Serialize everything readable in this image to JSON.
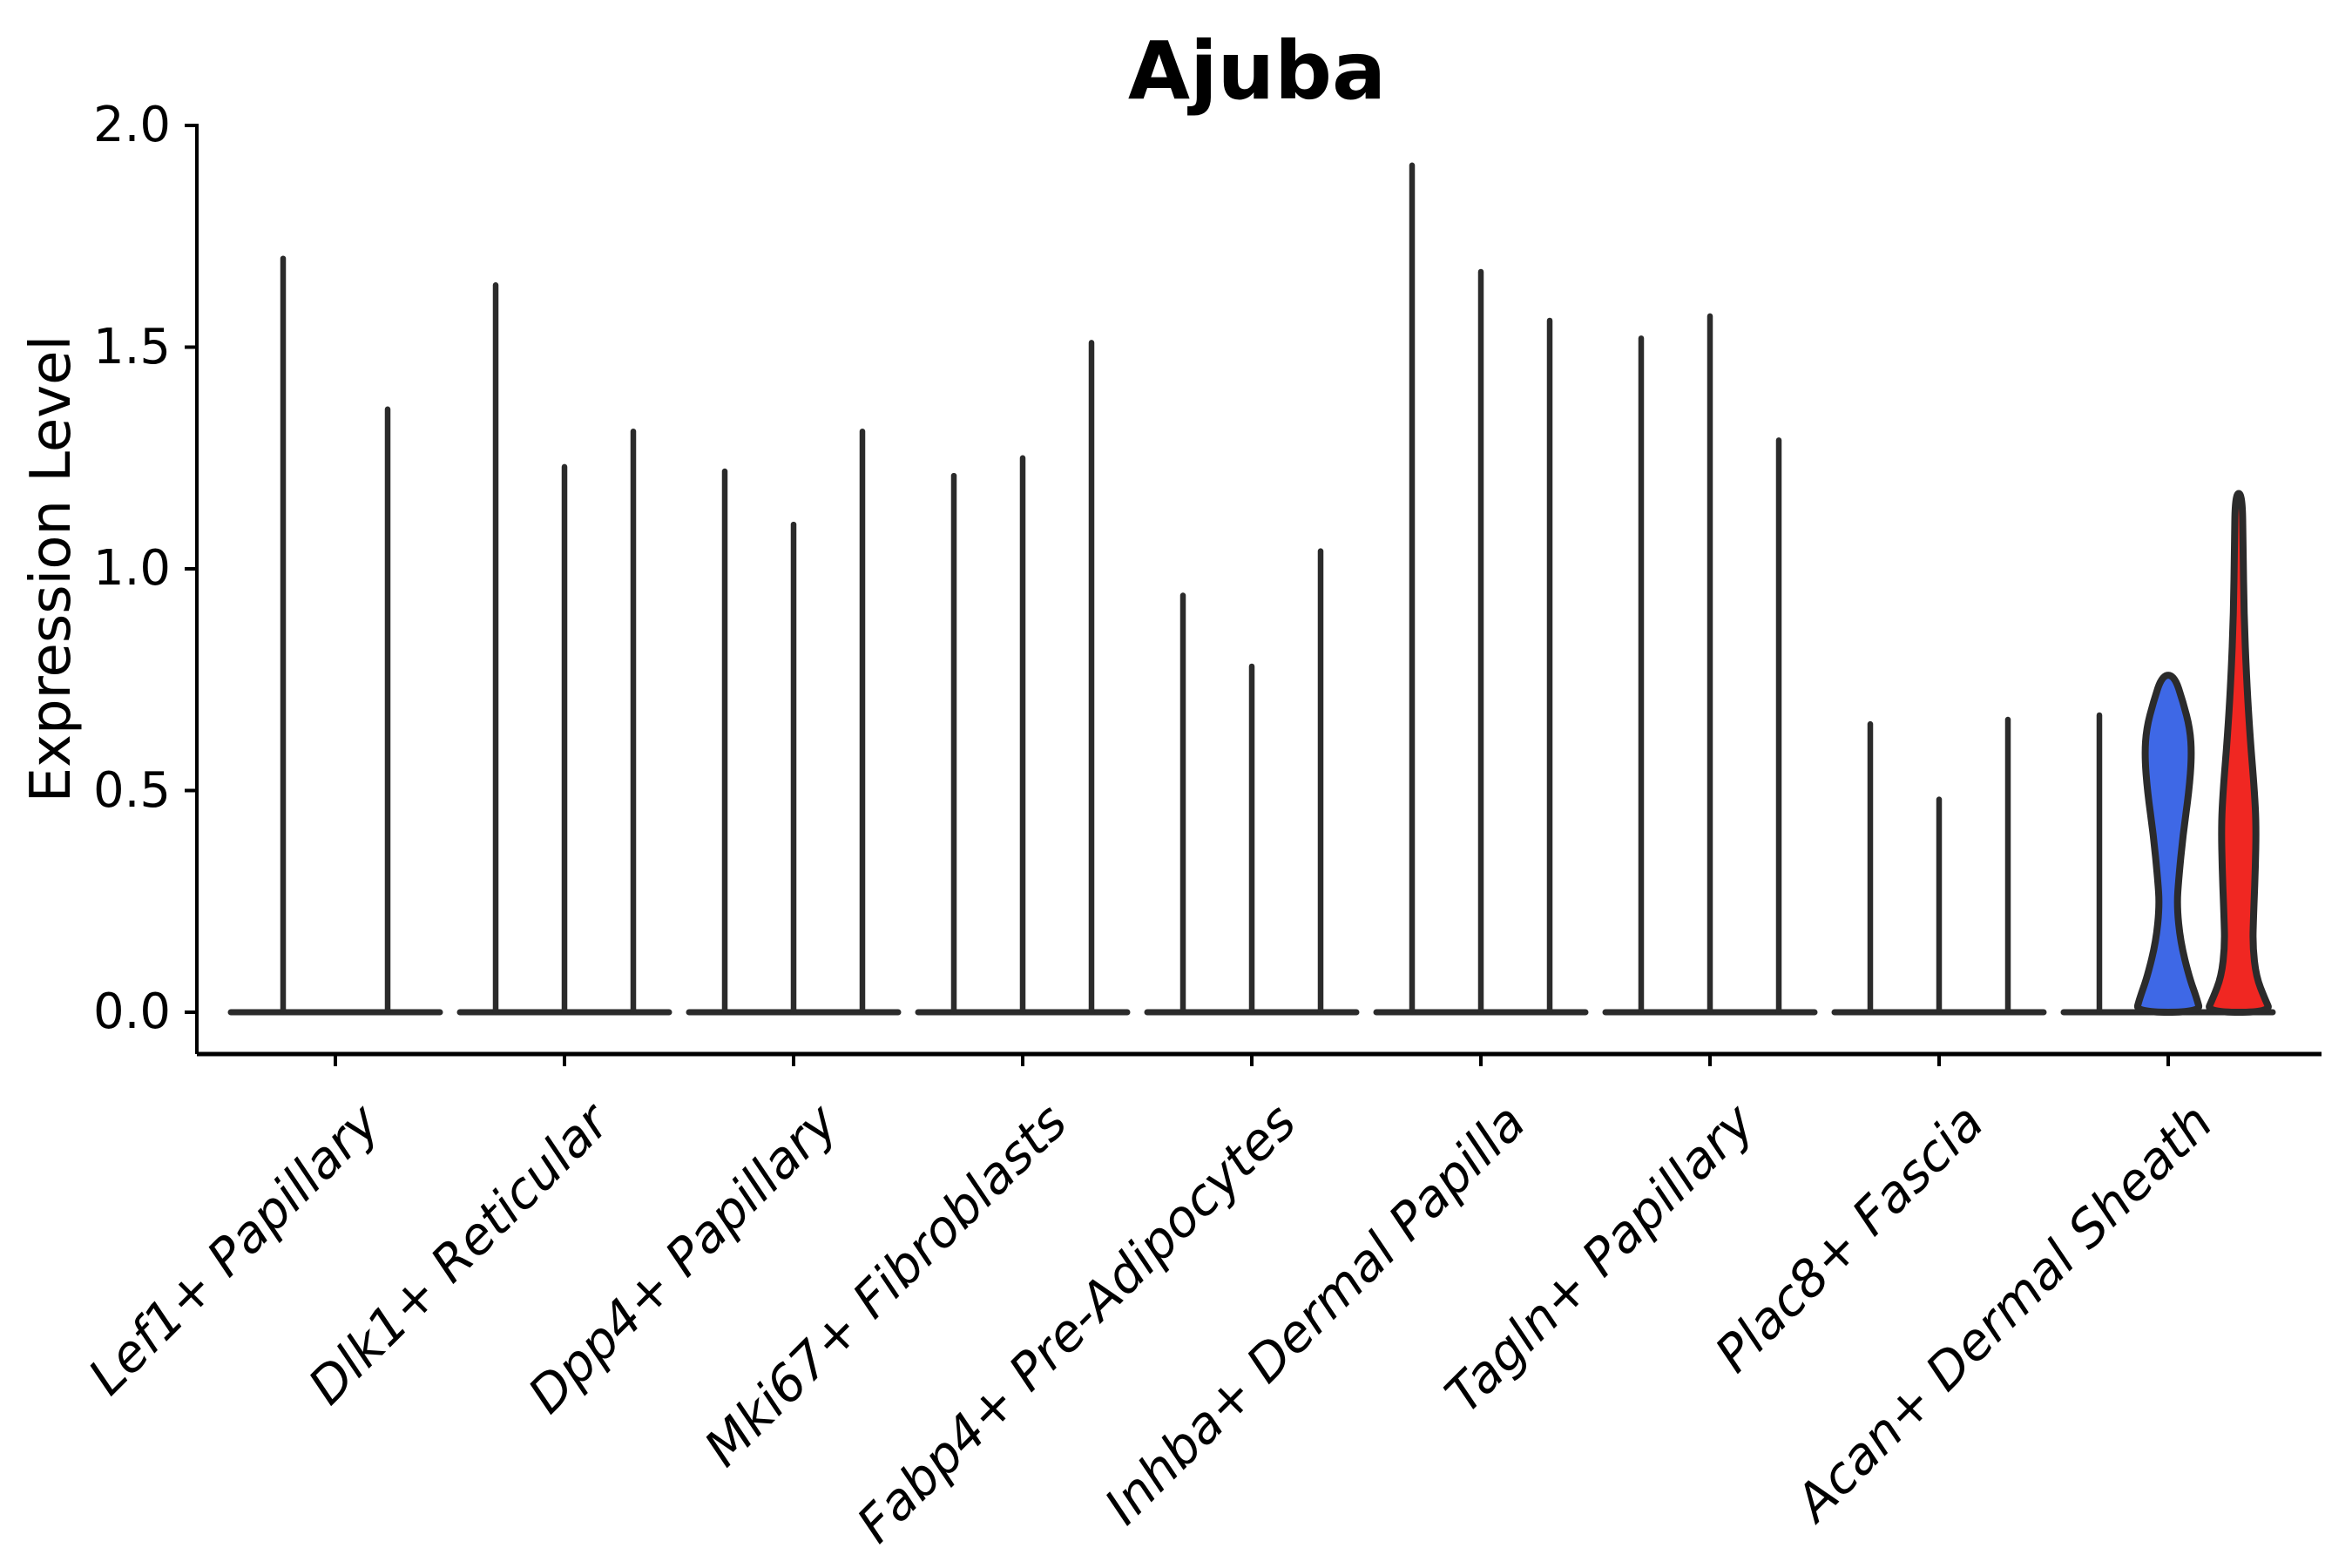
{
  "chart_data": {
    "type": "violin",
    "title": "Ajuba",
    "xlabel": "",
    "ylabel": "Expression Level",
    "ylim": [
      0.0,
      2.0
    ],
    "yticks": [
      {
        "value": 2.0,
        "label": "2.0"
      },
      {
        "value": 1.5,
        "label": "1.5"
      },
      {
        "value": 1.0,
        "label": "1.0"
      },
      {
        "value": 0.5,
        "label": "0.5"
      },
      {
        "value": 0.0,
        "label": "0.0"
      }
    ],
    "grid": false,
    "legend": false,
    "note": "Stacked/split violin plot; most violins collapse to a flat base at 0 with a thin density spike up to the max expression value. Last category has two filled violins (blue, red).",
    "categories": [
      "Lef1+ Papillary",
      "Dlk1+ Reticular",
      "Dpp4+ Papillary",
      "Mki67+ Fibroblasts",
      "Fabp4+ Pre-Adipocytes",
      "Inhba+ Dermal Papilla",
      "Tagln+ Papillary",
      "Plac8+ Fascia",
      "Acan+ Dermal Sheath"
    ],
    "groups": [
      {
        "category": "Lef1+ Papillary",
        "violins": [
          {
            "dx": -60,
            "max": 1.7,
            "style": "spike"
          },
          {
            "dx": 60,
            "max": 1.36,
            "style": "spike"
          }
        ]
      },
      {
        "category": "Dlk1+ Reticular",
        "violins": [
          {
            "dx": -79,
            "max": 1.64,
            "style": "spike"
          },
          {
            "dx": 0,
            "max": 1.23,
            "style": "spike"
          },
          {
            "dx": 79,
            "max": 1.31,
            "style": "spike"
          }
        ]
      },
      {
        "category": "Dpp4+ Papillary",
        "violins": [
          {
            "dx": -79,
            "max": 1.22,
            "style": "spike"
          },
          {
            "dx": 0,
            "max": 1.1,
            "style": "spike"
          },
          {
            "dx": 79,
            "max": 1.31,
            "style": "spike"
          }
        ]
      },
      {
        "category": "Mki67+ Fibroblasts",
        "violins": [
          {
            "dx": -79,
            "max": 1.21,
            "style": "spike"
          },
          {
            "dx": 0,
            "max": 1.25,
            "style": "spike"
          },
          {
            "dx": 79,
            "max": 1.51,
            "style": "spike"
          }
        ]
      },
      {
        "category": "Fabp4+ Pre-Adipocytes",
        "violins": [
          {
            "dx": -79,
            "max": 0.94,
            "style": "spike"
          },
          {
            "dx": 0,
            "max": 0.78,
            "style": "spike"
          },
          {
            "dx": 79,
            "max": 1.04,
            "style": "spike"
          }
        ]
      },
      {
        "category": "Inhba+ Dermal Papilla",
        "violins": [
          {
            "dx": -79,
            "max": 1.91,
            "style": "spike"
          },
          {
            "dx": 0,
            "max": 1.67,
            "style": "spike"
          },
          {
            "dx": 79,
            "max": 1.56,
            "style": "spike"
          }
        ]
      },
      {
        "category": "Tagln+ Papillary",
        "violins": [
          {
            "dx": -79,
            "max": 1.52,
            "style": "spike"
          },
          {
            "dx": 0,
            "max": 1.57,
            "style": "spike"
          },
          {
            "dx": 79,
            "max": 1.29,
            "style": "spike"
          }
        ]
      },
      {
        "category": "Plac8+ Fascia",
        "violins": [
          {
            "dx": -79,
            "max": 0.65,
            "style": "spike"
          },
          {
            "dx": 0,
            "max": 0.48,
            "style": "spike"
          },
          {
            "dx": 79,
            "max": 0.66,
            "style": "spike"
          }
        ]
      },
      {
        "category": "Acan+ Dermal Sheath",
        "violins": [
          {
            "dx": -79,
            "max": 0.67,
            "style": "spike"
          },
          {
            "dx": 0,
            "max": 0.76,
            "style": "filled",
            "color_key": "blue"
          },
          {
            "dx": 81,
            "max": 1.17,
            "style": "filled",
            "color_key": "red"
          }
        ]
      }
    ],
    "filled_profiles": {
      "blue": [
        [
          0.76,
          7
        ],
        [
          0.7,
          17
        ],
        [
          0.64,
          25
        ],
        [
          0.58,
          27
        ],
        [
          0.5,
          24
        ],
        [
          0.4,
          17
        ],
        [
          0.3,
          12
        ],
        [
          0.24,
          10
        ],
        [
          0.16,
          14
        ],
        [
          0.08,
          24
        ],
        [
          0.03,
          33
        ],
        [
          0.0,
          37
        ]
      ],
      "red": [
        [
          1.17,
          4
        ],
        [
          1.05,
          5
        ],
        [
          0.9,
          6
        ],
        [
          0.75,
          9
        ],
        [
          0.62,
          13
        ],
        [
          0.5,
          18
        ],
        [
          0.42,
          20
        ],
        [
          0.32,
          19
        ],
        [
          0.22,
          17
        ],
        [
          0.15,
          16
        ],
        [
          0.08,
          20
        ],
        [
          0.03,
          30
        ],
        [
          0.0,
          37
        ]
      ]
    },
    "colors": {
      "blue": "#3E68E6",
      "red": "#F02722",
      "stroke": "#2B2B2B",
      "axis": "#000000"
    }
  }
}
